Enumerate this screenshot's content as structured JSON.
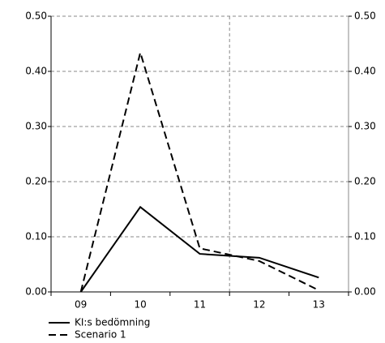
{
  "chart_data": {
    "type": "line",
    "categories": [
      "09",
      "10",
      "11",
      "12",
      "13"
    ],
    "series": [
      {
        "name": "KI:s bedömning",
        "color": "#000000",
        "dash": "solid",
        "values": [
          0,
          0.154,
          0.069,
          0.062,
          0.026
        ]
      },
      {
        "name": "Scenario 1",
        "color": "#000000",
        "dash": "dashed",
        "values": [
          0,
          0.434,
          0.079,
          0.056,
          0.003
        ]
      }
    ],
    "ylim": [
      0,
      0.5
    ],
    "yticks": [
      {
        "value": 0,
        "label": "0.00"
      },
      {
        "value": 0.1,
        "label": "0.10"
      },
      {
        "value": 0.2,
        "label": "0.20"
      },
      {
        "value": 0.3,
        "label": "0.30"
      },
      {
        "value": 0.4,
        "label": "0.40"
      },
      {
        "value": 0.5,
        "label": "0.50"
      }
    ],
    "y2lim": [
      0,
      0.5
    ],
    "y2ticks": [
      {
        "value": 0,
        "label": "0.00"
      },
      {
        "value": 0.1,
        "label": "0.10"
      },
      {
        "value": 0.2,
        "label": "0.20"
      },
      {
        "value": 0.3,
        "label": "0.30"
      },
      {
        "value": 0.4,
        "label": "0.40"
      },
      {
        "value": 0.5,
        "label": "0.50"
      }
    ],
    "grid": true,
    "legend": "bottom-left"
  }
}
